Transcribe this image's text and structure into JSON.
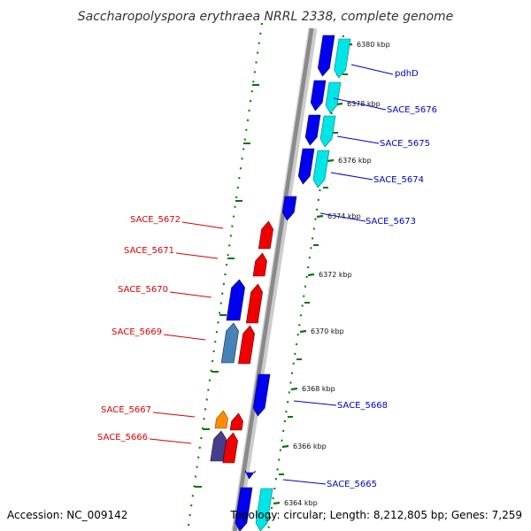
{
  "title": "Saccharopolyspora erythraea NRRL 2338, complete genome",
  "accession": "Accession: NC_009142",
  "topology": "Topology: circular; Length: 8,212,805 bp; Genes: 7,259",
  "colors": {
    "forward_cds": "#0000ee",
    "forward_feature": "#00e5e5",
    "reverse_cds": "#ee0000",
    "reverse_steel": "#4682b4",
    "reverse_orange": "#ff8c00",
    "reverse_slate": "#483d8b",
    "forward_label": "#0000cc",
    "reverse_label": "#dd0000",
    "tick": "#007700",
    "backbone": "#8a8a8a"
  },
  "ticks": [
    {
      "label": "6380 kbp"
    },
    {
      "label": "6378 kbp"
    },
    {
      "label": "6376 kbp"
    },
    {
      "label": "6374 kbp"
    },
    {
      "label": "6372 kbp"
    },
    {
      "label": "6370 kbp"
    },
    {
      "label": "6368 kbp"
    },
    {
      "label": "6366 kbp"
    },
    {
      "label": "6364 kbp"
    }
  ],
  "forward_genes": [
    {
      "label": "pdhD"
    },
    {
      "label": "SACE_5676"
    },
    {
      "label": "SACE_5675"
    },
    {
      "label": "SACE_5674"
    },
    {
      "label": "SACE_5673"
    },
    {
      "label": "SACE_5668"
    },
    {
      "label": "SACE_5665"
    }
  ],
  "reverse_genes": [
    {
      "label": "SACE_5672"
    },
    {
      "label": "SACE_5671"
    },
    {
      "label": "SACE_5670"
    },
    {
      "label": "SACE_5669"
    },
    {
      "label": "SACE_5667"
    },
    {
      "label": "SACE_5666"
    }
  ]
}
